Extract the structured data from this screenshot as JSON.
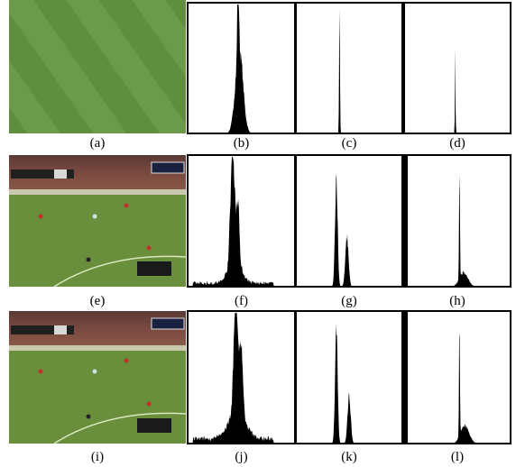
{
  "rows": [
    [
      "(a)",
      "(b)",
      "(c)",
      "(d)"
    ],
    [
      "(e)",
      "(f)",
      "(g)",
      "(h)"
    ],
    [
      "(i)",
      "(j)",
      "(k)",
      "(l)"
    ]
  ]
}
